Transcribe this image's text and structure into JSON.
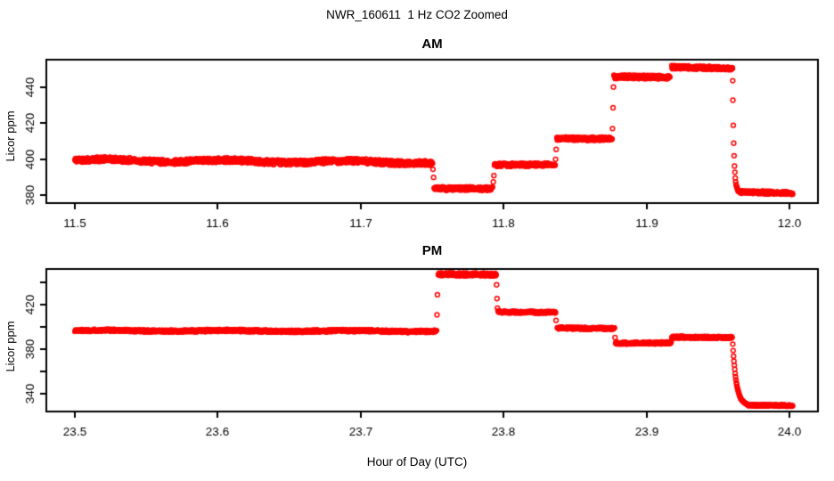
{
  "title": "NWR_160611  1 Hz CO2 Zoomed",
  "xlabel": "Hour of Day (UTC)",
  "background_color": "#FFFFFF",
  "axis_color": "#000000",
  "point_color": "#FF0000",
  "chart_data": [
    {
      "type": "scatter",
      "panel_title": "AM",
      "ylabel": "Licor ppm",
      "marker": "open-circle",
      "sample_rate_hz": 1,
      "xlim": [
        11.48,
        12.02
      ],
      "ylim": [
        375.8,
        455.1
      ],
      "xticks": [
        11.5,
        11.6,
        11.7,
        11.8,
        11.9,
        12.0
      ],
      "xtick_labels": [
        "11.5",
        "11.6",
        "11.7",
        "11.8",
        "11.9",
        "12.0"
      ],
      "yticks": [
        380,
        400,
        420,
        440
      ],
      "ytick_labels": [
        "380",
        "400",
        "420",
        "440"
      ],
      "plateaus": [
        {
          "t0": 11.5,
          "t1": 11.7503,
          "v0": 399.5,
          "v1": 398.3,
          "noise": 1.3,
          "wiggle": 0.6
        },
        {
          "t0": 11.7514,
          "t1": 11.7924,
          "v0": 383.8,
          "v1": 383.8,
          "noise": 1.0
        },
        {
          "t0": 11.7936,
          "t1": 11.8361,
          "v0": 396.8,
          "v1": 397.2,
          "noise": 0.9
        },
        {
          "t0": 11.8373,
          "t1": 11.876,
          "v0": 411.5,
          "v1": 411.3,
          "noise": 0.9
        },
        {
          "t0": 11.8772,
          "t1": 11.9165,
          "v0": 445.6,
          "v1": 445.4,
          "noise": 1.0
        },
        {
          "t0": 11.9177,
          "t1": 11.9602,
          "v0": 451.0,
          "v1": 450.3,
          "noise": 0.9
        },
        {
          "t0": 11.964,
          "t1": 12.0025,
          "v0": 382.0,
          "v1": 381.3,
          "noise": 0.8
        }
      ],
      "decays": [
        {
          "t0": 11.9602,
          "t1": 11.964,
          "v_from": 450.5,
          "v_to": 382.0,
          "tau": 0.0009
        }
      ],
      "transition_points": [
        [
          11.7506,
          394.5
        ],
        [
          11.751,
          390.0
        ],
        [
          11.7928,
          387.5
        ],
        [
          11.7932,
          391.0
        ],
        [
          11.8364,
          400.0
        ],
        [
          11.8368,
          405.5
        ],
        [
          11.8762,
          417.0
        ],
        [
          11.8766,
          428.5
        ],
        [
          11.8769,
          440.0
        ],
        [
          11.96035,
          443.5
        ]
      ]
    },
    {
      "type": "scatter",
      "panel_title": "PM",
      "ylabel": "Licor ppm",
      "marker": "open-circle",
      "sample_rate_hz": 1,
      "xlim": [
        23.48,
        24.02
      ],
      "ylim": [
        323.6,
        451.6
      ],
      "xticks": [
        23.5,
        23.6,
        23.7,
        23.8,
        23.9,
        24.0
      ],
      "xtick_labels": [
        "23.5",
        "23.6",
        "23.7",
        "23.8",
        "23.9",
        "24.0"
      ],
      "yticks": [
        340,
        360,
        380,
        400,
        420,
        440
      ],
      "ytick_labels": [
        "340",
        "",
        "380",
        "",
        "420",
        ""
      ],
      "plateaus": [
        {
          "t0": 23.5,
          "t1": 23.7531,
          "v0": 396.3,
          "v1": 395.8,
          "noise": 1.0,
          "wiggle": 0.4
        },
        {
          "t0": 23.7543,
          "t1": 23.7949,
          "v0": 447.0,
          "v1": 446.6,
          "noise": 1.3
        },
        {
          "t0": 23.7961,
          "t1": 23.8364,
          "v0": 413.0,
          "v1": 412.6,
          "noise": 0.9
        },
        {
          "t0": 23.8376,
          "t1": 23.8778,
          "v0": 398.6,
          "v1": 398.2,
          "noise": 0.9
        },
        {
          "t0": 23.8784,
          "t1": 23.9171,
          "v0": 385.0,
          "v1": 385.3,
          "noise": 0.9
        },
        {
          "t0": 23.9177,
          "t1": 23.9601,
          "v0": 390.5,
          "v1": 390.0,
          "noise": 0.9
        },
        {
          "t0": 23.9706,
          "t1": 24.0025,
          "v0": 329.2,
          "v1": 329.0,
          "noise": 0.8
        }
      ],
      "decays": [
        {
          "t0": 23.9601,
          "t1": 23.9706,
          "v_from": 390.0,
          "v_to": 329.2,
          "tau": 0.0026
        }
      ],
      "transition_points": [
        [
          23.7534,
          410.5
        ],
        [
          23.7537,
          428.5
        ],
        [
          23.7951,
          437.5
        ],
        [
          23.7954,
          425.0
        ],
        [
          23.7957,
          416.5
        ],
        [
          23.8367,
          405.5
        ],
        [
          23.878,
          390.0
        ],
        [
          23.9174,
          387.0
        ]
      ]
    }
  ]
}
